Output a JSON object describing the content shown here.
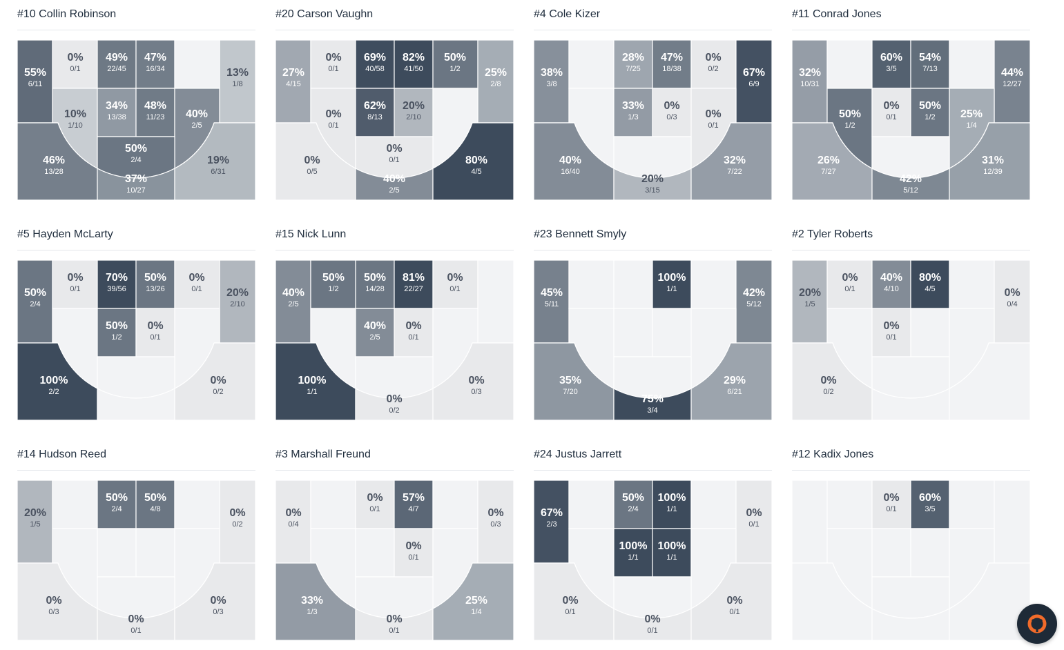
{
  "players": [
    {
      "title": "#10 Collin Robinson",
      "zones": [
        {
          "id": "LC",
          "pct": "55%",
          "frac": "6/11",
          "val": 0.55
        },
        {
          "id": "LW",
          "pct": "0%",
          "frac": "0/1",
          "val": 0.0
        },
        {
          "id": "TL",
          "pct": "49%",
          "frac": "22/45",
          "val": 0.49
        },
        {
          "id": "TR",
          "pct": "47%",
          "frac": "16/34",
          "val": 0.47
        },
        {
          "id": "RW",
          "pct": "",
          "frac": "",
          "val": null
        },
        {
          "id": "RC",
          "pct": "13%",
          "frac": "1/8",
          "val": 0.13
        },
        {
          "id": "ML",
          "pct": "10%",
          "frac": "1/10",
          "val": 0.1
        },
        {
          "id": "PL",
          "pct": "34%",
          "frac": "13/38",
          "val": 0.34
        },
        {
          "id": "PR",
          "pct": "48%",
          "frac": "11/23",
          "val": 0.48
        },
        {
          "id": "MR",
          "pct": "40%",
          "frac": "2/5",
          "val": 0.4
        },
        {
          "id": "FT",
          "pct": "50%",
          "frac": "2/4",
          "val": 0.5
        },
        {
          "id": "LT",
          "pct": "46%",
          "frac": "13/28",
          "val": 0.46
        },
        {
          "id": "TT",
          "pct": "37%",
          "frac": "10/27",
          "val": 0.37
        },
        {
          "id": "RT",
          "pct": "19%",
          "frac": "6/31",
          "val": 0.19
        }
      ]
    },
    {
      "title": "#20 Carson Vaughn",
      "zones": [
        {
          "id": "LC",
          "pct": "27%",
          "frac": "4/15",
          "val": 0.27
        },
        {
          "id": "LW",
          "pct": "0%",
          "frac": "0/1",
          "val": 0.0
        },
        {
          "id": "TL",
          "pct": "69%",
          "frac": "40/58",
          "val": 0.69
        },
        {
          "id": "TR",
          "pct": "82%",
          "frac": "41/50",
          "val": 0.82
        },
        {
          "id": "RW",
          "pct": "50%",
          "frac": "1/2",
          "val": 0.5
        },
        {
          "id": "RC",
          "pct": "25%",
          "frac": "2/8",
          "val": 0.25
        },
        {
          "id": "ML",
          "pct": "0%",
          "frac": "0/1",
          "val": 0.0
        },
        {
          "id": "PL",
          "pct": "62%",
          "frac": "8/13",
          "val": 0.62
        },
        {
          "id": "PR",
          "pct": "20%",
          "frac": "2/10",
          "val": 0.2
        },
        {
          "id": "MR",
          "pct": "",
          "frac": "",
          "val": null
        },
        {
          "id": "FT",
          "pct": "0%",
          "frac": "0/1",
          "val": 0.0
        },
        {
          "id": "LT",
          "pct": "0%",
          "frac": "0/5",
          "val": 0.0
        },
        {
          "id": "TT",
          "pct": "40%",
          "frac": "2/5",
          "val": 0.4
        },
        {
          "id": "RT",
          "pct": "80%",
          "frac": "4/5",
          "val": 0.8
        }
      ]
    },
    {
      "title": "#4 Cole Kizer",
      "zones": [
        {
          "id": "LC",
          "pct": "38%",
          "frac": "3/8",
          "val": 0.38
        },
        {
          "id": "LW",
          "pct": "",
          "frac": "",
          "val": null
        },
        {
          "id": "TL",
          "pct": "28%",
          "frac": "7/25",
          "val": 0.28
        },
        {
          "id": "TR",
          "pct": "47%",
          "frac": "18/38",
          "val": 0.47
        },
        {
          "id": "RW",
          "pct": "0%",
          "frac": "0/2",
          "val": 0.0
        },
        {
          "id": "RC",
          "pct": "67%",
          "frac": "6/9",
          "val": 0.67
        },
        {
          "id": "ML",
          "pct": "",
          "frac": "",
          "val": null
        },
        {
          "id": "PL",
          "pct": "33%",
          "frac": "1/3",
          "val": 0.33
        },
        {
          "id": "PR",
          "pct": "0%",
          "frac": "0/3",
          "val": 0.0
        },
        {
          "id": "MR",
          "pct": "0%",
          "frac": "0/1",
          "val": 0.0
        },
        {
          "id": "FT",
          "pct": "",
          "frac": "",
          "val": null
        },
        {
          "id": "LT",
          "pct": "40%",
          "frac": "16/40",
          "val": 0.4
        },
        {
          "id": "TT",
          "pct": "20%",
          "frac": "3/15",
          "val": 0.2
        },
        {
          "id": "RT",
          "pct": "32%",
          "frac": "7/22",
          "val": 0.32
        }
      ]
    },
    {
      "title": "#11 Conrad Jones",
      "zones": [
        {
          "id": "LC",
          "pct": "32%",
          "frac": "10/31",
          "val": 0.32
        },
        {
          "id": "LW",
          "pct": "",
          "frac": "",
          "val": null
        },
        {
          "id": "TL",
          "pct": "60%",
          "frac": "3/5",
          "val": 0.6
        },
        {
          "id": "TR",
          "pct": "54%",
          "frac": "7/13",
          "val": 0.54
        },
        {
          "id": "RW",
          "pct": "",
          "frac": "",
          "val": null
        },
        {
          "id": "RC",
          "pct": "44%",
          "frac": "12/27",
          "val": 0.44
        },
        {
          "id": "ML",
          "pct": "50%",
          "frac": "1/2",
          "val": 0.5
        },
        {
          "id": "PL",
          "pct": "0%",
          "frac": "0/1",
          "val": 0.0
        },
        {
          "id": "PR",
          "pct": "50%",
          "frac": "1/2",
          "val": 0.5
        },
        {
          "id": "MR",
          "pct": "25%",
          "frac": "1/4",
          "val": 0.25
        },
        {
          "id": "FT",
          "pct": "",
          "frac": "",
          "val": null
        },
        {
          "id": "LT",
          "pct": "26%",
          "frac": "7/27",
          "val": 0.26
        },
        {
          "id": "TT",
          "pct": "42%",
          "frac": "5/12",
          "val": 0.42
        },
        {
          "id": "RT",
          "pct": "31%",
          "frac": "12/39",
          "val": 0.31
        }
      ]
    },
    {
      "title": "#5 Hayden McLarty",
      "zones": [
        {
          "id": "LC",
          "pct": "50%",
          "frac": "2/4",
          "val": 0.5
        },
        {
          "id": "LW",
          "pct": "0%",
          "frac": "0/1",
          "val": 0.0
        },
        {
          "id": "TL",
          "pct": "70%",
          "frac": "39/56",
          "val": 0.7
        },
        {
          "id": "TR",
          "pct": "50%",
          "frac": "13/26",
          "val": 0.5
        },
        {
          "id": "RW",
          "pct": "0%",
          "frac": "0/1",
          "val": 0.0
        },
        {
          "id": "RC",
          "pct": "20%",
          "frac": "2/10",
          "val": 0.2
        },
        {
          "id": "ML",
          "pct": "",
          "frac": "",
          "val": null
        },
        {
          "id": "PL",
          "pct": "50%",
          "frac": "1/2",
          "val": 0.5
        },
        {
          "id": "PR",
          "pct": "0%",
          "frac": "0/1",
          "val": 0.0
        },
        {
          "id": "MR",
          "pct": "",
          "frac": "",
          "val": null
        },
        {
          "id": "FT",
          "pct": "",
          "frac": "",
          "val": null
        },
        {
          "id": "LT",
          "pct": "100%",
          "frac": "2/2",
          "val": 1.0
        },
        {
          "id": "TT",
          "pct": "",
          "frac": "",
          "val": null
        },
        {
          "id": "RT",
          "pct": "0%",
          "frac": "0/2",
          "val": 0.0
        }
      ]
    },
    {
      "title": "#15 Nick Lunn",
      "zones": [
        {
          "id": "LC",
          "pct": "40%",
          "frac": "2/5",
          "val": 0.4
        },
        {
          "id": "LW",
          "pct": "50%",
          "frac": "1/2",
          "val": 0.5
        },
        {
          "id": "TL",
          "pct": "50%",
          "frac": "14/28",
          "val": 0.5
        },
        {
          "id": "TR",
          "pct": "81%",
          "frac": "22/27",
          "val": 0.81
        },
        {
          "id": "RW",
          "pct": "0%",
          "frac": "0/1",
          "val": 0.0
        },
        {
          "id": "RC",
          "pct": "",
          "frac": "",
          "val": null
        },
        {
          "id": "ML",
          "pct": "",
          "frac": "",
          "val": null
        },
        {
          "id": "PL",
          "pct": "40%",
          "frac": "2/5",
          "val": 0.4
        },
        {
          "id": "PR",
          "pct": "0%",
          "frac": "0/1",
          "val": 0.0
        },
        {
          "id": "MR",
          "pct": "",
          "frac": "",
          "val": null
        },
        {
          "id": "FT",
          "pct": "",
          "frac": "",
          "val": null
        },
        {
          "id": "LT",
          "pct": "100%",
          "frac": "1/1",
          "val": 1.0
        },
        {
          "id": "TT",
          "pct": "0%",
          "frac": "0/2",
          "val": 0.0
        },
        {
          "id": "RT",
          "pct": "0%",
          "frac": "0/3",
          "val": 0.0
        }
      ]
    },
    {
      "title": "#23 Bennett Smyly",
      "zones": [
        {
          "id": "LC",
          "pct": "45%",
          "frac": "5/11",
          "val": 0.45
        },
        {
          "id": "LW",
          "pct": "",
          "frac": "",
          "val": null
        },
        {
          "id": "TL",
          "pct": "",
          "frac": "",
          "val": null
        },
        {
          "id": "TR",
          "pct": "100%",
          "frac": "1/1",
          "val": 1.0
        },
        {
          "id": "RW",
          "pct": "",
          "frac": "",
          "val": null
        },
        {
          "id": "RC",
          "pct": "42%",
          "frac": "5/12",
          "val": 0.42
        },
        {
          "id": "ML",
          "pct": "",
          "frac": "",
          "val": null
        },
        {
          "id": "PL",
          "pct": "",
          "frac": "",
          "val": null
        },
        {
          "id": "PR",
          "pct": "",
          "frac": "",
          "val": null
        },
        {
          "id": "MR",
          "pct": "",
          "frac": "",
          "val": null
        },
        {
          "id": "FT",
          "pct": "",
          "frac": "",
          "val": null
        },
        {
          "id": "LT",
          "pct": "35%",
          "frac": "7/20",
          "val": 0.35
        },
        {
          "id": "TT",
          "pct": "75%",
          "frac": "3/4",
          "val": 0.75
        },
        {
          "id": "RT",
          "pct": "29%",
          "frac": "6/21",
          "val": 0.29
        }
      ]
    },
    {
      "title": "#2 Tyler Roberts",
      "zones": [
        {
          "id": "LC",
          "pct": "20%",
          "frac": "1/5",
          "val": 0.2
        },
        {
          "id": "LW",
          "pct": "0%",
          "frac": "0/1",
          "val": 0.0
        },
        {
          "id": "TL",
          "pct": "40%",
          "frac": "4/10",
          "val": 0.4
        },
        {
          "id": "TR",
          "pct": "80%",
          "frac": "4/5",
          "val": 0.8
        },
        {
          "id": "RW",
          "pct": "",
          "frac": "",
          "val": null
        },
        {
          "id": "RC",
          "pct": "0%",
          "frac": "0/4",
          "val": 0.0
        },
        {
          "id": "ML",
          "pct": "",
          "frac": "",
          "val": null
        },
        {
          "id": "PL",
          "pct": "0%",
          "frac": "0/1",
          "val": 0.0
        },
        {
          "id": "PR",
          "pct": "",
          "frac": "",
          "val": null
        },
        {
          "id": "MR",
          "pct": "",
          "frac": "",
          "val": null
        },
        {
          "id": "FT",
          "pct": "",
          "frac": "",
          "val": null
        },
        {
          "id": "LT",
          "pct": "0%",
          "frac": "0/2",
          "val": 0.0
        },
        {
          "id": "TT",
          "pct": "",
          "frac": "",
          "val": null
        },
        {
          "id": "RT",
          "pct": "",
          "frac": "",
          "val": null
        }
      ]
    },
    {
      "title": "#14 Hudson Reed",
      "zones": [
        {
          "id": "LC",
          "pct": "20%",
          "frac": "1/5",
          "val": 0.2
        },
        {
          "id": "LW",
          "pct": "",
          "frac": "",
          "val": null
        },
        {
          "id": "TL",
          "pct": "50%",
          "frac": "2/4",
          "val": 0.5
        },
        {
          "id": "TR",
          "pct": "50%",
          "frac": "4/8",
          "val": 0.5
        },
        {
          "id": "RW",
          "pct": "",
          "frac": "",
          "val": null
        },
        {
          "id": "RC",
          "pct": "0%",
          "frac": "0/2",
          "val": 0.0
        },
        {
          "id": "ML",
          "pct": "",
          "frac": "",
          "val": null
        },
        {
          "id": "PL",
          "pct": "",
          "frac": "",
          "val": null
        },
        {
          "id": "PR",
          "pct": "",
          "frac": "",
          "val": null
        },
        {
          "id": "MR",
          "pct": "",
          "frac": "",
          "val": null
        },
        {
          "id": "FT",
          "pct": "",
          "frac": "",
          "val": null
        },
        {
          "id": "LT",
          "pct": "0%",
          "frac": "0/3",
          "val": 0.0
        },
        {
          "id": "TT",
          "pct": "0%",
          "frac": "0/1",
          "val": 0.0
        },
        {
          "id": "RT",
          "pct": "0%",
          "frac": "0/3",
          "val": 0.0
        }
      ]
    },
    {
      "title": "#3 Marshall Freund",
      "zones": [
        {
          "id": "LC",
          "pct": "0%",
          "frac": "0/4",
          "val": 0.0
        },
        {
          "id": "LW",
          "pct": "",
          "frac": "",
          "val": null
        },
        {
          "id": "TL",
          "pct": "0%",
          "frac": "0/1",
          "val": 0.0
        },
        {
          "id": "TR",
          "pct": "57%",
          "frac": "4/7",
          "val": 0.57
        },
        {
          "id": "RW",
          "pct": "",
          "frac": "",
          "val": null
        },
        {
          "id": "RC",
          "pct": "0%",
          "frac": "0/3",
          "val": 0.0
        },
        {
          "id": "ML",
          "pct": "",
          "frac": "",
          "val": null
        },
        {
          "id": "PL",
          "pct": "",
          "frac": "",
          "val": null
        },
        {
          "id": "PR",
          "pct": "0%",
          "frac": "0/1",
          "val": 0.0
        },
        {
          "id": "MR",
          "pct": "",
          "frac": "",
          "val": null
        },
        {
          "id": "FT",
          "pct": "",
          "frac": "",
          "val": null
        },
        {
          "id": "LT",
          "pct": "33%",
          "frac": "1/3",
          "val": 0.33
        },
        {
          "id": "TT",
          "pct": "0%",
          "frac": "0/1",
          "val": 0.0
        },
        {
          "id": "RT",
          "pct": "25%",
          "frac": "1/4",
          "val": 0.25
        }
      ]
    },
    {
      "title": "#24 Justus Jarrett",
      "zones": [
        {
          "id": "LC",
          "pct": "67%",
          "frac": "2/3",
          "val": 0.67
        },
        {
          "id": "LW",
          "pct": "",
          "frac": "",
          "val": null
        },
        {
          "id": "TL",
          "pct": "50%",
          "frac": "2/4",
          "val": 0.5
        },
        {
          "id": "TR",
          "pct": "100%",
          "frac": "1/1",
          "val": 1.0
        },
        {
          "id": "RW",
          "pct": "",
          "frac": "",
          "val": null
        },
        {
          "id": "RC",
          "pct": "0%",
          "frac": "0/1",
          "val": 0.0
        },
        {
          "id": "ML",
          "pct": "",
          "frac": "",
          "val": null
        },
        {
          "id": "PL",
          "pct": "100%",
          "frac": "1/1",
          "val": 1.0
        },
        {
          "id": "PR",
          "pct": "100%",
          "frac": "1/1",
          "val": 1.0
        },
        {
          "id": "MR",
          "pct": "",
          "frac": "",
          "val": null
        },
        {
          "id": "FT",
          "pct": "",
          "frac": "",
          "val": null
        },
        {
          "id": "LT",
          "pct": "0%",
          "frac": "0/1",
          "val": 0.0
        },
        {
          "id": "TT",
          "pct": "0%",
          "frac": "0/1",
          "val": 0.0
        },
        {
          "id": "RT",
          "pct": "0%",
          "frac": "0/1",
          "val": 0.0
        }
      ]
    },
    {
      "title": "#12 Kadix Jones",
      "zones": [
        {
          "id": "LC",
          "pct": "",
          "frac": "",
          "val": null
        },
        {
          "id": "LW",
          "pct": "",
          "frac": "",
          "val": null
        },
        {
          "id": "TL",
          "pct": "0%",
          "frac": "0/1",
          "val": 0.0
        },
        {
          "id": "TR",
          "pct": "60%",
          "frac": "3/5",
          "val": 0.6
        },
        {
          "id": "RW",
          "pct": "",
          "frac": "",
          "val": null
        },
        {
          "id": "RC",
          "pct": "",
          "frac": "",
          "val": null
        },
        {
          "id": "ML",
          "pct": "",
          "frac": "",
          "val": null
        },
        {
          "id": "PL",
          "pct": "",
          "frac": "",
          "val": null
        },
        {
          "id": "PR",
          "pct": "",
          "frac": "",
          "val": null
        },
        {
          "id": "MR",
          "pct": "",
          "frac": "",
          "val": null
        },
        {
          "id": "FT",
          "pct": "",
          "frac": "",
          "val": null
        },
        {
          "id": "LT",
          "pct": "",
          "frac": "",
          "val": null
        },
        {
          "id": "TT",
          "pct": "",
          "frac": "",
          "val": null
        },
        {
          "id": "RT",
          "pct": "",
          "frac": "",
          "val": null
        }
      ]
    }
  ],
  "colors": {
    "empty": "#f2f3f5",
    "zero": "#e8e9eb",
    "dark": "#3d4b5c",
    "grid_line": "#ffffff",
    "text_dark": "#4a5260",
    "text_light": "#ffffff",
    "fab_bg": "#1e2a37",
    "fab_accent": "#f26b2a"
  },
  "fab": {
    "icon": "brand-logo-icon"
  }
}
